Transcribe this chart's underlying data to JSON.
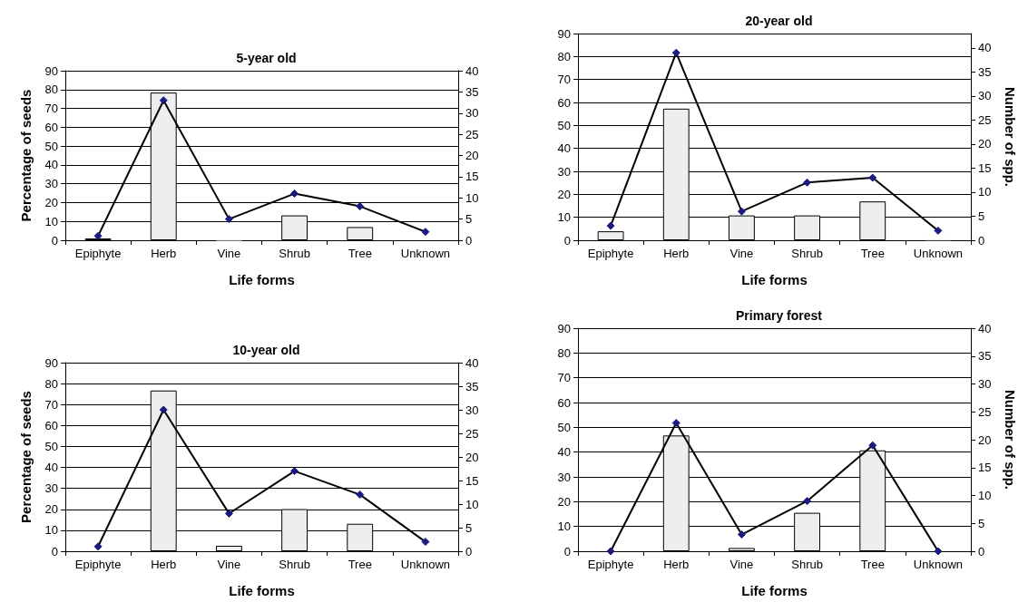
{
  "chart_data": [
    {
      "type": "bar",
      "title": "5-year old",
      "xlabel": "Life forms",
      "ylabel": "Percentage of seeds",
      "categories": [
        "Epiphyte",
        "Herb",
        "Vine",
        "Shrub",
        "Tree",
        "Unknown"
      ],
      "series": [
        {
          "color": "#eeeeee",
          "values": [
            1,
            78.4,
            0.3,
            13.2,
            7,
            0
          ]
        },
        {
          "type": "line",
          "axis": "y2",
          "color": "#000000",
          "values": [
            1,
            33,
            5,
            11,
            8,
            2
          ]
        }
      ],
      "ylim": [
        0,
        90
      ],
      "yticks": [
        0,
        10,
        20,
        30,
        40,
        50,
        60,
        70,
        80,
        90
      ],
      "y2lim": [
        0,
        40
      ],
      "y2ticks": [
        0,
        5,
        10,
        15,
        20,
        25,
        30,
        35,
        40
      ],
      "grid": "y",
      "marker": "diamond",
      "line_style": "solid"
    },
    {
      "type": "bar",
      "title": "20-year old",
      "xlabel": "Life forms",
      "y2label": "Number of spp.",
      "categories": [
        "Epiphyte",
        "Herb",
        "Vine",
        "Shrub",
        "Tree",
        "Unknown"
      ],
      "series": [
        {
          "color": "#eeeeee",
          "values": [
            3.9,
            57.3,
            10.8,
            10.8,
            16.9,
            0.3
          ]
        },
        {
          "type": "line",
          "axis": "y2",
          "color": "#000000",
          "values": [
            3,
            39,
            6,
            12,
            13,
            2
          ]
        }
      ],
      "ylim": [
        0,
        90
      ],
      "yticks": [
        0,
        10,
        20,
        30,
        40,
        50,
        60,
        70,
        80,
        90
      ],
      "y2lim": [
        0,
        43
      ],
      "y2ticks": [
        0,
        5,
        10,
        15,
        20,
        25,
        30,
        35,
        40
      ],
      "grid": "y",
      "marker": "diamond",
      "line_style": "solid"
    },
    {
      "type": "bar",
      "title": "10-year old",
      "xlabel": "Life forms",
      "ylabel": "Percentage of seeds",
      "categories": [
        "Epiphyte",
        "Herb",
        "Vine",
        "Shrub",
        "Tree",
        "Unknown"
      ],
      "series": [
        {
          "color": "#eeeeee",
          "values": [
            0,
            76.7,
            2.6,
            20.1,
            13.1,
            0
          ]
        },
        {
          "type": "line",
          "axis": "y2",
          "color": "#000000",
          "values": [
            1,
            30,
            8,
            17,
            12,
            2
          ]
        }
      ],
      "ylim": [
        0,
        90
      ],
      "yticks": [
        0,
        10,
        20,
        30,
        40,
        50,
        60,
        70,
        80,
        90
      ],
      "y2lim": [
        0,
        40
      ],
      "y2ticks": [
        0,
        5,
        10,
        15,
        20,
        25,
        30,
        35,
        40
      ],
      "grid": "y",
      "marker": "diamond",
      "line_style": "solid"
    },
    {
      "type": "bar",
      "title": "Primary forest",
      "xlabel": "Life forms",
      "y2label": "Number of spp.",
      "categories": [
        "Epiphyte",
        "Herb",
        "Vine",
        "Shrub",
        "Tree",
        "Unknown"
      ],
      "series": [
        {
          "color": "#eeeeee",
          "values": [
            0,
            46.7,
            1.3,
            15.5,
            40.7,
            0
          ]
        },
        {
          "type": "line",
          "axis": "y2",
          "color": "#000000",
          "values": [
            0,
            23,
            3,
            9,
            19,
            0
          ]
        }
      ],
      "ylim": [
        0,
        90
      ],
      "yticks": [
        0,
        10,
        20,
        30,
        40,
        50,
        60,
        70,
        80,
        90
      ],
      "y2lim": [
        0,
        40
      ],
      "y2ticks": [
        0,
        5,
        10,
        15,
        20,
        25,
        30,
        35,
        40
      ],
      "grid": "y",
      "marker": "diamond",
      "line_style": "solid"
    }
  ]
}
